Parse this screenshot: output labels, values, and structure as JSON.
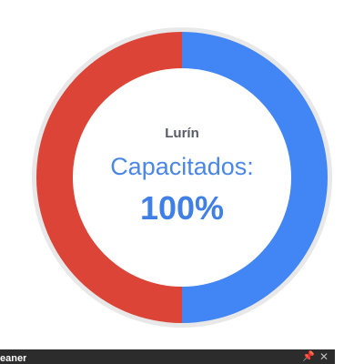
{
  "chart_data": {
    "type": "pie",
    "title": "",
    "labels": [
      "",
      ""
    ],
    "values": [
      50,
      50
    ],
    "colors": [
      "#4285f4",
      "#db4437"
    ],
    "center": {
      "region": "Lurín",
      "metric_label": "Capacitados:",
      "metric_value": "100%"
    }
  },
  "colors": {
    "track": "#e8e8e8",
    "accent_text": "#4a86e8"
  },
  "bottom_bar": {
    "title": "eaner",
    "pin_icon": "pin-icon",
    "close_icon": "close-icon"
  }
}
